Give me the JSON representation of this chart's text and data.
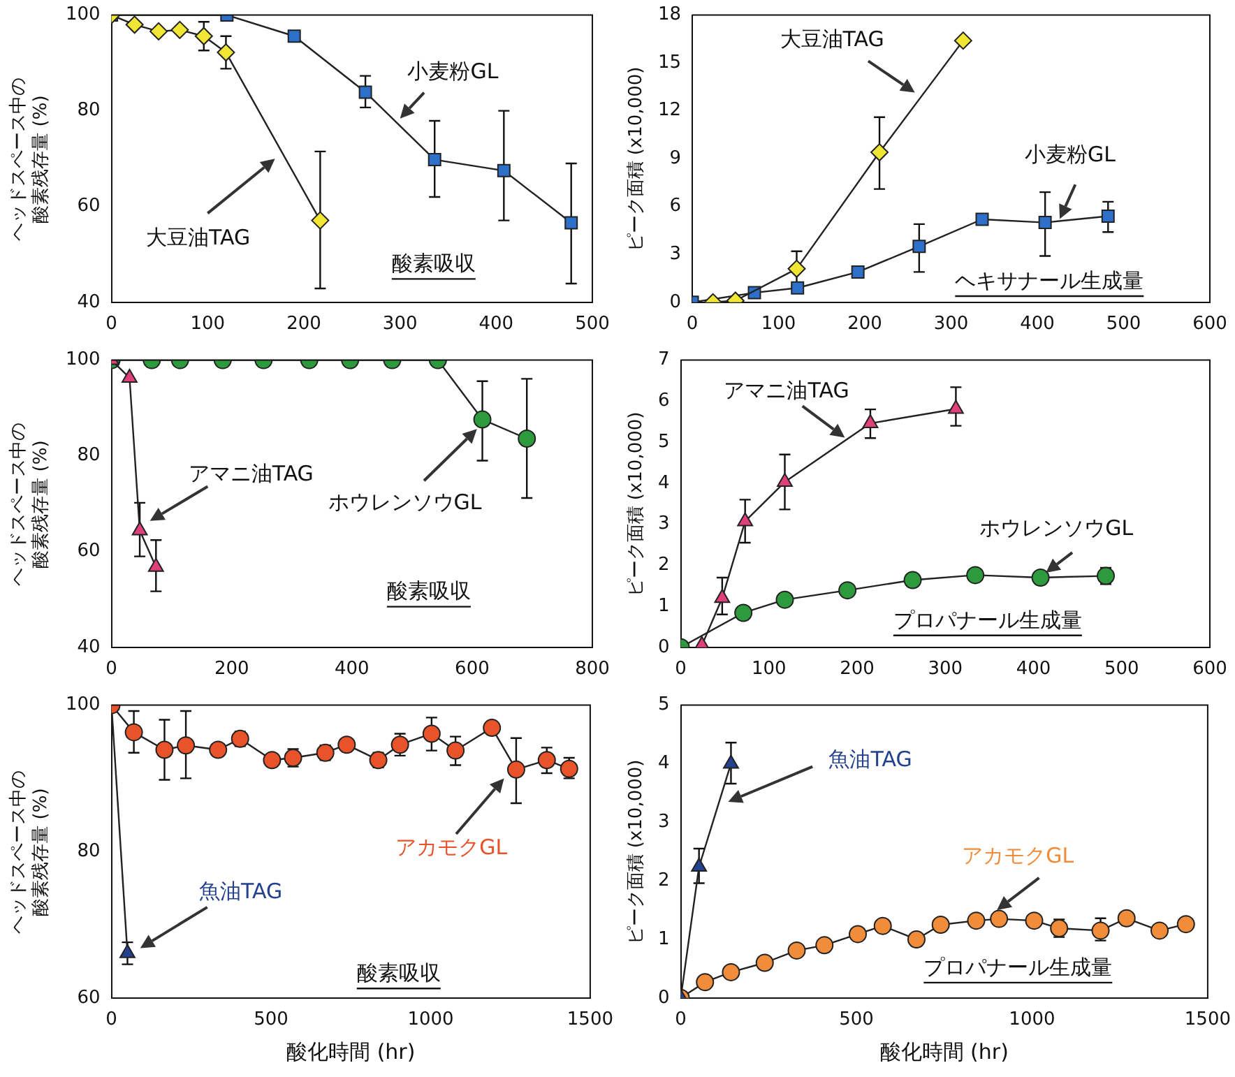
{
  "chart_data": [
    {
      "type": "line",
      "ylabel": "ヘッドスペース中の酸素残存量 (%)",
      "xlim": [
        0,
        500
      ],
      "xticks": [
        0,
        100,
        200,
        300,
        400,
        500
      ],
      "ylim": [
        40,
        100
      ],
      "yticks": [
        40,
        60,
        80,
        100
      ],
      "grid": false,
      "legend": false,
      "annotations": [
        "酸素吸収"
      ],
      "series": [
        {
          "name": "大豆油TAG",
          "color": "#f2e634",
          "marker": "diamond",
          "x": [
            0,
            24,
            49,
            71,
            96,
            119,
            217
          ],
          "values": [
            100,
            98,
            96.6,
            96.9,
            95.6,
            92.2,
            57.1
          ],
          "errors": [
            null,
            null,
            null,
            null,
            3,
            3.4,
            [
              42.9,
              71.5
            ]
          ]
        },
        {
          "name": "小麦粉GL",
          "color": "#2e6fc9",
          "marker": "square",
          "x": [
            0,
            120,
            190,
            264,
            336,
            408,
            478
          ],
          "values": [
            100,
            100,
            95.6,
            83.9,
            69.8,
            67.5,
            56.6
          ],
          "errors": [
            null,
            null,
            null,
            [
              80.7,
              87.3
            ],
            [
              62,
              77.9
            ],
            [
              57.1,
              80
            ],
            [
              43.9,
              69
            ]
          ]
        }
      ]
    },
    {
      "type": "line",
      "ylabel": "ピーク面積 (x10,000)",
      "xlim": [
        0,
        600
      ],
      "xticks": [
        0,
        100,
        200,
        300,
        400,
        500,
        600
      ],
      "ylim": [
        0,
        18
      ],
      "yticks": [
        0,
        3,
        6,
        9,
        12,
        15,
        18
      ],
      "grid": false,
      "legend": false,
      "annotations": [
        "ヘキサナール生成量"
      ],
      "series": [
        {
          "name": "大豆油TAG",
          "color": "#f2e634",
          "marker": "diamond",
          "x": [
            24,
            50,
            121,
            217,
            314
          ],
          "values": [
            0,
            0.1,
            2.1,
            9.4,
            16.4
          ],
          "errors": [
            null,
            null,
            [
              1,
              3.2
            ],
            [
              7.1,
              11.6
            ],
            null
          ]
        },
        {
          "name": "小麦粉GL",
          "color": "#2e6fc9",
          "marker": "square",
          "x": [
            0,
            72,
            122,
            192,
            263,
            336,
            409,
            482
          ],
          "values": [
            0,
            0.6,
            0.9,
            1.9,
            3.5,
            5.2,
            5.0,
            5.4
          ],
          "errors": [
            null,
            null,
            null,
            null,
            [
              1.9,
              4.9
            ],
            null,
            [
              2.9,
              6.9
            ],
            [
              4.4,
              6.3
            ]
          ]
        }
      ]
    },
    {
      "type": "line",
      "ylabel": "ヘッドスペース中の酸素残存量 (%)",
      "xlim": [
        0,
        800
      ],
      "xticks": [
        0,
        200,
        400,
        600,
        800
      ],
      "ylim": [
        40,
        100
      ],
      "yticks": [
        40,
        60,
        80,
        100
      ],
      "grid": false,
      "legend": false,
      "annotations": [
        "酸素吸収"
      ],
      "series": [
        {
          "name": "アマニ油TAG",
          "color": "#e0407a",
          "marker": "triangle",
          "x": [
            0,
            30,
            47,
            74
          ],
          "values": [
            100,
            96.3,
            64.4,
            56.8
          ],
          "errors": [
            null,
            null,
            [
              59,
              70.2
            ],
            [
              51.7,
              62.4
            ]
          ]
        },
        {
          "name": "ホウレンソウGL",
          "color": "#2e9a3e",
          "marker": "circle",
          "x": [
            0,
            67,
            114,
            185,
            253,
            329,
            397,
            467,
            543,
            617,
            691
          ],
          "values": [
            100,
            100,
            100,
            100,
            100,
            100,
            100,
            100,
            100,
            87.6,
            83.6
          ],
          "errors": [
            null,
            null,
            null,
            null,
            null,
            null,
            null,
            null,
            null,
            [
              79,
              95.6
            ],
            [
              71.2,
              96.1
            ]
          ]
        }
      ]
    },
    {
      "type": "line",
      "ylabel": "ピーク面積 (x10,000)",
      "xlim": [
        0,
        600
      ],
      "xticks": [
        0,
        100,
        200,
        300,
        400,
        500,
        600
      ],
      "ylim": [
        0,
        7
      ],
      "yticks": [
        0,
        1,
        2,
        3,
        4,
        5,
        6,
        7
      ],
      "grid": false,
      "legend": false,
      "annotations": [
        "プロパナール生成量"
      ],
      "series": [
        {
          "name": "アマニ油TAG",
          "color": "#e0407a",
          "marker": "triangle",
          "x": [
            24,
            47,
            73,
            118,
            215,
            312
          ],
          "values": [
            0.05,
            1.2,
            3.07,
            4.03,
            5.46,
            5.81
          ],
          "errors": [
            null,
            [
              0.8,
              1.7
            ],
            [
              2.55,
              3.6
            ],
            [
              3.36,
              4.7
            ],
            [
              5.1,
              5.8
            ],
            [
              5.4,
              6.34
            ]
          ]
        },
        {
          "name": "ホウレンソウGL",
          "color": "#2e9a3e",
          "marker": "circle",
          "x": [
            0,
            71,
            118,
            189,
            263,
            334,
            408,
            482
          ],
          "values": [
            0,
            0.84,
            1.16,
            1.39,
            1.64,
            1.76,
            1.7,
            1.74
          ],
          "errors": [
            null,
            null,
            null,
            null,
            null,
            null,
            null,
            0.2
          ]
        }
      ]
    },
    {
      "type": "line",
      "xlabel": "酸化時間 (hr)",
      "ylabel": "ヘッドスペース中の酸素残存量 (%)",
      "xlim": [
        0,
        1500
      ],
      "xticks": [
        0,
        500,
        1000,
        1500
      ],
      "ylim": [
        60,
        100
      ],
      "yticks": [
        60,
        80,
        100
      ],
      "grid": false,
      "legend": false,
      "annotations": [
        "酸素吸収"
      ],
      "series": [
        {
          "name": "アカモクGL",
          "color": "#e8532a",
          "marker": "circle",
          "x": [
            0,
            70,
            166,
            233,
            334,
            403,
            503,
            569,
            670,
            737,
            836,
            904,
            1003,
            1078,
            1192,
            1268,
            1364,
            1434
          ],
          "values": [
            100,
            96.3,
            93.9,
            94.5,
            93.9,
            95.4,
            92.5,
            92.8,
            93.5,
            94.6,
            92.5,
            94.6,
            96.1,
            93.8,
            96.9,
            91.2,
            92.5,
            91.3
          ],
          "errors": [
            null,
            [
              93.5,
              99.2
            ],
            [
              89.8,
              98
            ],
            [
              90,
              99.2
            ],
            null,
            1,
            null,
            1.2,
            1,
            null,
            1,
            1.5,
            [
              93.8,
              98.3
            ],
            [
              91.8,
              95.7
            ],
            null,
            [
              86.6,
              95.5
            ],
            [
              90.7,
              94.2
            ],
            [
              90,
              92.8
            ]
          ]
        },
        {
          "name": "魚油TAG",
          "color": "#23418f",
          "marker": "triangle",
          "x": [
            0,
            50
          ],
          "values": [
            100,
            66.1
          ],
          "errors": [
            null,
            1.5
          ]
        }
      ]
    },
    {
      "type": "line",
      "xlabel": "酸化時間 (hr)",
      "ylabel": "ピーク面積 (x10,000)",
      "xlim": [
        0,
        1500
      ],
      "xticks": [
        0,
        500,
        1000,
        1500
      ],
      "ylim": [
        0,
        5
      ],
      "yticks": [
        0,
        1,
        2,
        3,
        4,
        5
      ],
      "grid": false,
      "legend": false,
      "annotations": [
        "プロパナール生成量"
      ],
      "series": [
        {
          "name": "魚油TAG",
          "color": "#23418f",
          "marker": "triangle",
          "x": [
            0,
            52,
            143
          ],
          "values": [
            0,
            2.24,
            4.0
          ],
          "errors": [
            null,
            [
              1.96,
              2.55
            ],
            [
              3.66,
              4.36
            ]
          ]
        },
        {
          "name": "アカモクGL",
          "color": "#f08c3a",
          "marker": "circle",
          "x": [
            0,
            69,
            143,
            239,
            330,
            409,
            504,
            575,
            671,
            740,
            841,
            906,
            1006,
            1077,
            1195,
            1269,
            1363,
            1438
          ],
          "values": [
            0,
            0.27,
            0.44,
            0.6,
            0.81,
            0.9,
            1.09,
            1.23,
            1.0,
            1.25,
            1.32,
            1.35,
            1.32,
            1.19,
            1.15,
            1.36,
            1.15,
            1.26
          ],
          "errors": [
            null,
            null,
            null,
            null,
            null,
            null,
            null,
            null,
            null,
            null,
            null,
            null,
            null,
            0.15,
            [
              0.98,
              1.36
            ],
            null,
            null,
            null
          ]
        }
      ]
    }
  ]
}
